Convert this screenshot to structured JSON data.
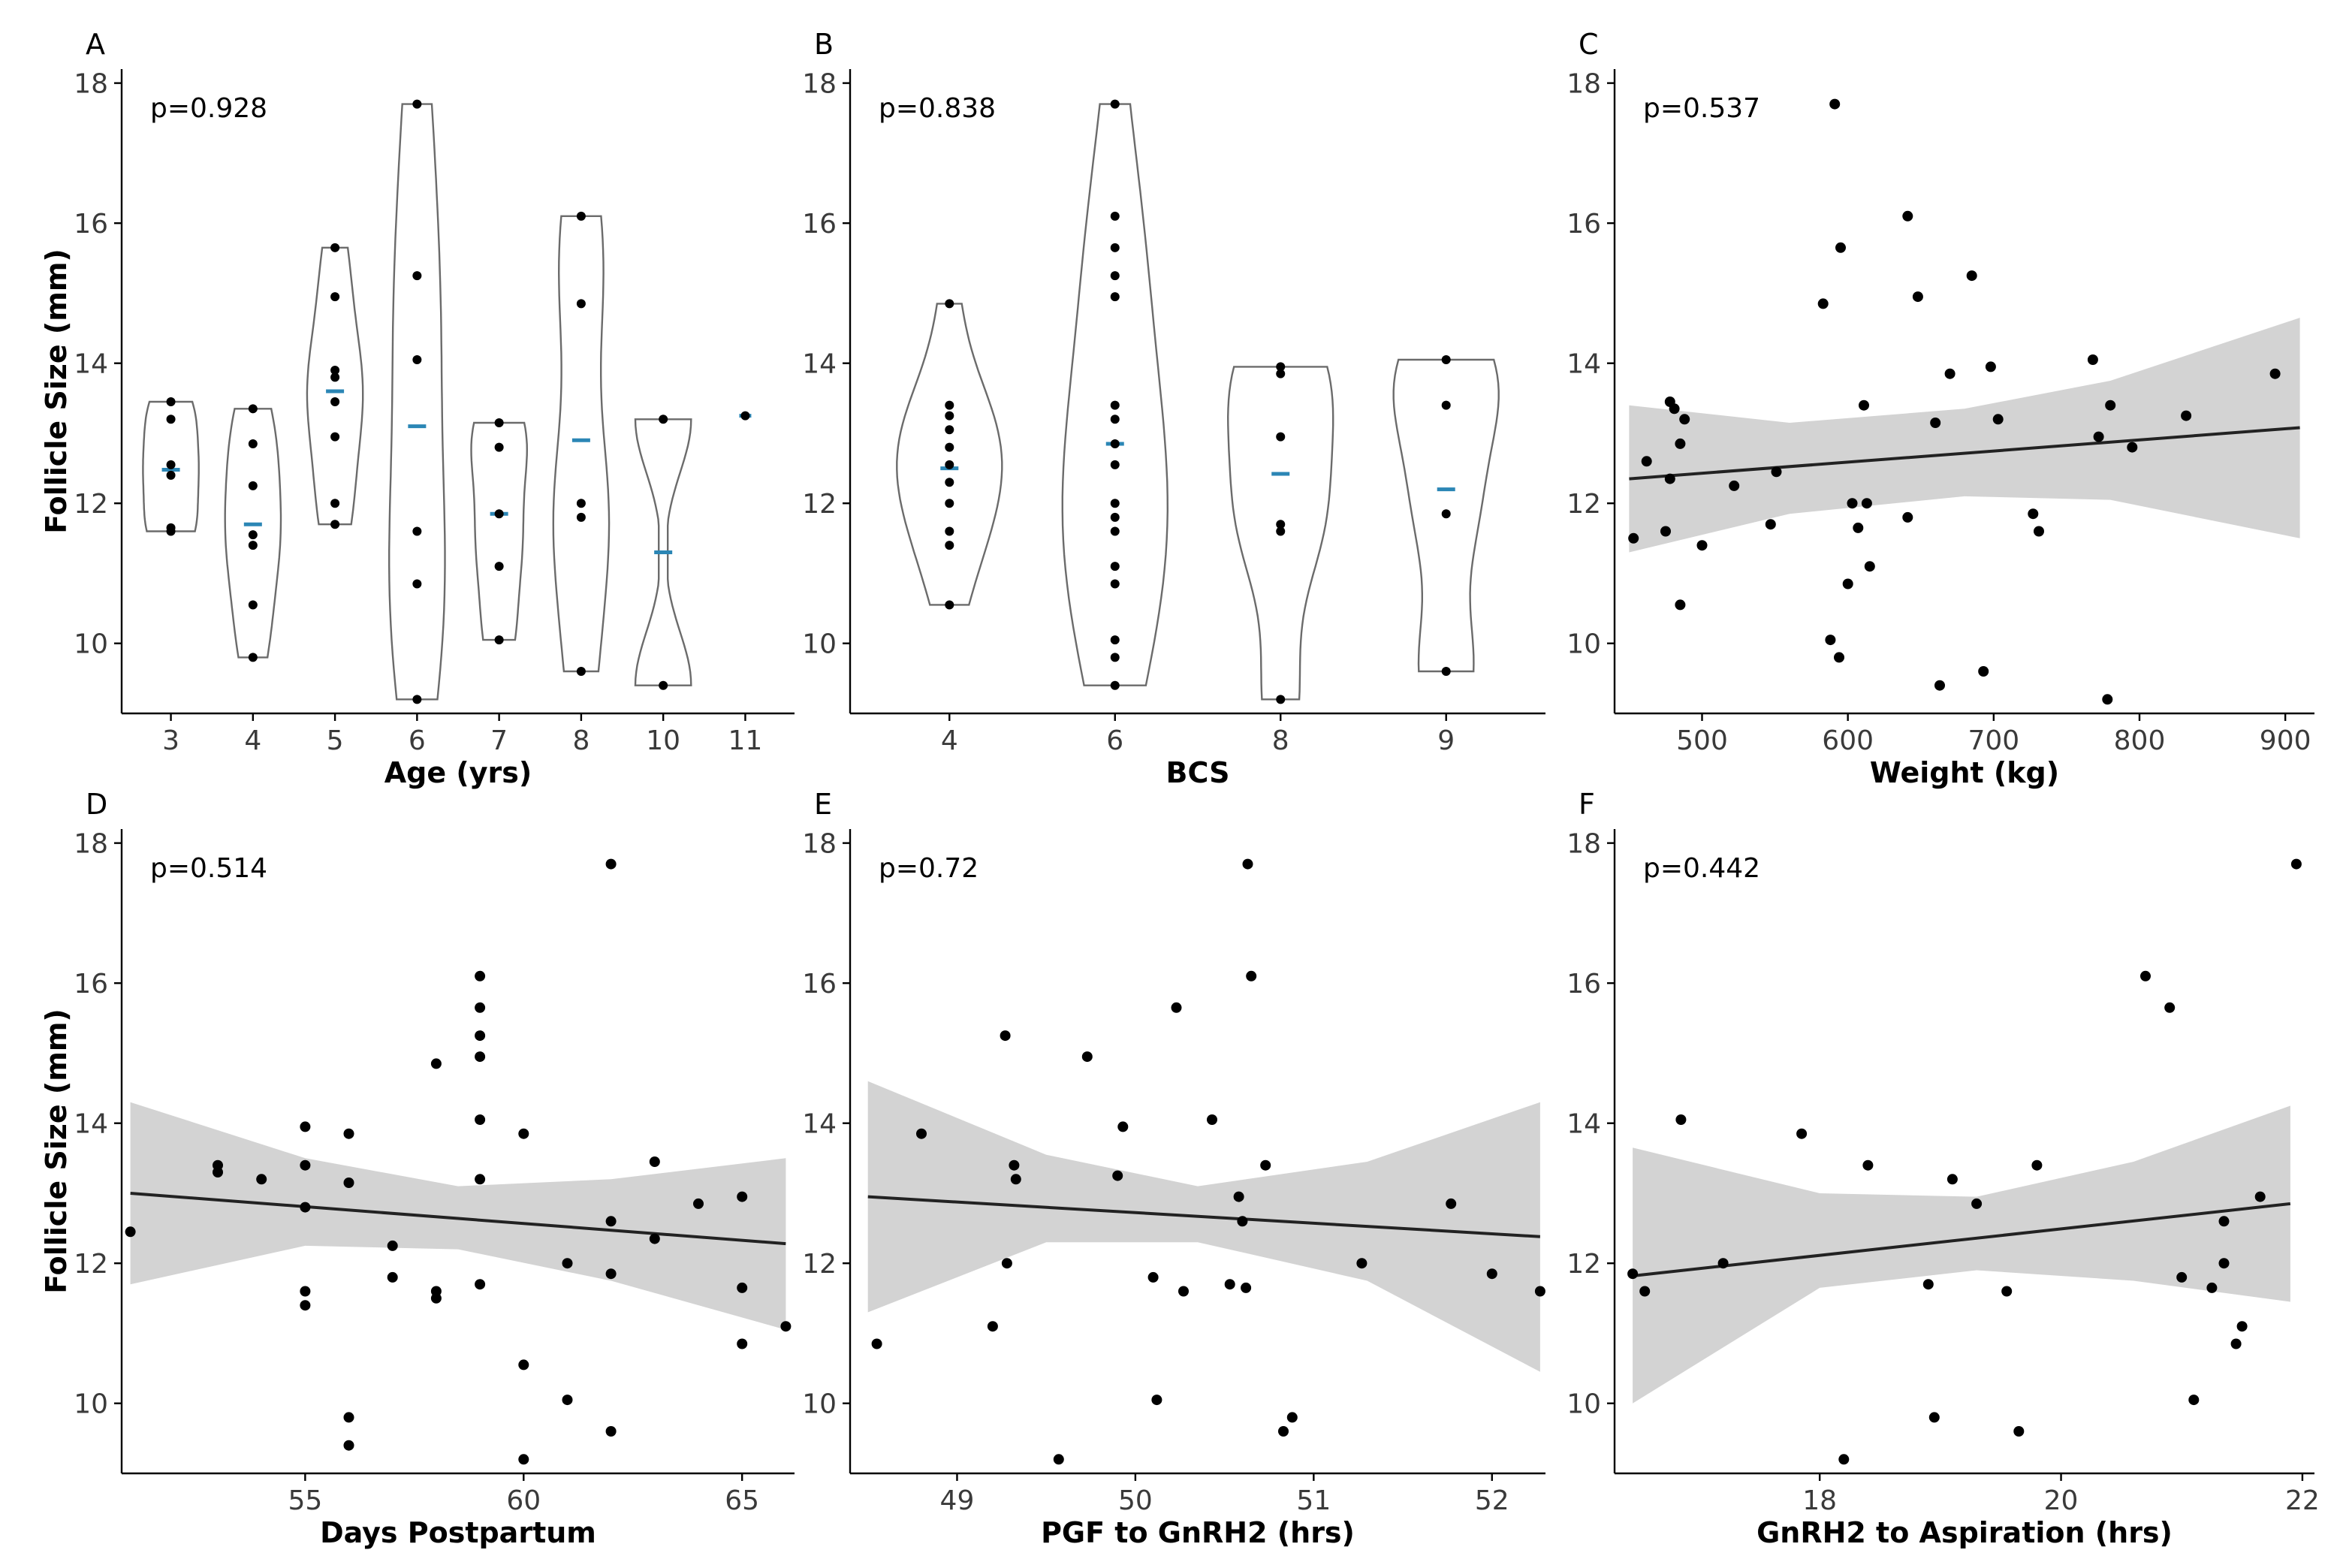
{
  "figure": {
    "y_axis_title": "Follicle Size (mm)"
  },
  "chart_data": [
    {
      "panel": "A",
      "type": "violin",
      "pvalue": "p=0.928",
      "xlabel": "Age (yrs)",
      "ylabel": "Follicle Size (mm)",
      "ylim": [
        9.0,
        18.2
      ],
      "yticks": [
        10,
        12,
        14,
        16,
        18
      ],
      "categories": [
        "3",
        "4",
        "5",
        "6",
        "7",
        "8",
        "10",
        "11"
      ],
      "groups": [
        {
          "x": "3",
          "points": [
            13.45,
            13.2,
            12.55,
            12.4,
            11.65,
            11.6
          ],
          "median": 12.48,
          "range": [
            11.6,
            13.45
          ]
        },
        {
          "x": "4",
          "points": [
            13.35,
            12.85,
            12.25,
            11.55,
            11.4,
            10.55,
            9.8
          ],
          "median": 11.7,
          "range": [
            9.8,
            13.35
          ]
        },
        {
          "x": "5",
          "points": [
            15.65,
            14.95,
            13.9,
            13.8,
            13.45,
            12.95,
            12.0,
            11.7
          ],
          "median": 13.6,
          "range": [
            11.7,
            15.65
          ]
        },
        {
          "x": "6",
          "points": [
            17.7,
            15.25,
            14.05,
            11.6,
            10.85,
            9.2
          ],
          "median": 13.1,
          "range": [
            9.2,
            17.7
          ]
        },
        {
          "x": "7",
          "points": [
            13.15,
            12.8,
            11.85,
            11.1,
            10.05
          ],
          "median": 11.85,
          "range": [
            10.05,
            13.15
          ]
        },
        {
          "x": "8",
          "points": [
            16.1,
            14.85,
            12.0,
            11.8,
            9.6
          ],
          "median": 12.9,
          "range": [
            9.6,
            16.1
          ]
        },
        {
          "x": "10",
          "points": [
            13.2,
            9.4
          ],
          "median": 11.3,
          "range": [
            9.4,
            13.2
          ]
        },
        {
          "x": "11",
          "points": [
            13.25
          ],
          "median": 13.25,
          "range": [
            13.25,
            13.25
          ]
        }
      ]
    },
    {
      "panel": "B",
      "type": "violin",
      "pvalue": "p=0.838",
      "xlabel": "BCS",
      "ylabel": "",
      "ylim": [
        9.0,
        18.2
      ],
      "yticks": [
        10,
        12,
        14,
        16,
        18
      ],
      "categories": [
        "4",
        "6",
        "8",
        "9"
      ],
      "groups": [
        {
          "x": "4",
          "points": [
            14.85,
            13.4,
            13.25,
            13.05,
            12.8,
            12.55,
            12.3,
            12.0,
            11.6,
            11.4,
            10.55
          ],
          "median": 12.5,
          "range": [
            10.55,
            14.85
          ]
        },
        {
          "x": "6",
          "points": [
            17.7,
            16.1,
            15.65,
            15.25,
            14.95,
            13.4,
            13.2,
            12.85,
            12.55,
            12.0,
            11.8,
            11.6,
            11.1,
            10.85,
            10.05,
            9.8,
            9.4
          ],
          "median": 12.85,
          "range": [
            9.4,
            17.7
          ]
        },
        {
          "x": "8",
          "points": [
            13.95,
            13.85,
            12.95,
            11.7,
            11.6,
            9.2
          ],
          "median": 12.42,
          "range": [
            9.2,
            13.95
          ]
        },
        {
          "x": "9",
          "points": [
            14.05,
            13.4,
            11.85,
            9.6
          ],
          "median": 12.2,
          "range": [
            9.6,
            14.05
          ]
        }
      ]
    },
    {
      "panel": "C",
      "type": "scatter",
      "pvalue": "p=0.537",
      "xlabel": "Weight (kg)",
      "ylabel": "",
      "xlim": [
        440,
        920
      ],
      "ylim": [
        9.0,
        18.2
      ],
      "xticks": [
        500,
        600,
        700,
        800,
        900
      ],
      "yticks": [
        10,
        12,
        14,
        16,
        18
      ],
      "points": [
        [
          453,
          11.5
        ],
        [
          462,
          12.6
        ],
        [
          475,
          11.6
        ],
        [
          478,
          13.45
        ],
        [
          478,
          12.35
        ],
        [
          481,
          13.35
        ],
        [
          485,
          12.85
        ],
        [
          485,
          10.55
        ],
        [
          488,
          13.2
        ],
        [
          500,
          11.4
        ],
        [
          522,
          12.25
        ],
        [
          547,
          11.7
        ],
        [
          551,
          12.45
        ],
        [
          583,
          14.85
        ],
        [
          588,
          10.05
        ],
        [
          591,
          17.7
        ],
        [
          594,
          9.8
        ],
        [
          595,
          15.65
        ],
        [
          600,
          10.85
        ],
        [
          603,
          12.0
        ],
        [
          607,
          11.65
        ],
        [
          611,
          13.4
        ],
        [
          613,
          12.0
        ],
        [
          615,
          11.1
        ],
        [
          641,
          16.1
        ],
        [
          641,
          11.8
        ],
        [
          648,
          14.95
        ],
        [
          660,
          13.15
        ],
        [
          663,
          9.4
        ],
        [
          670,
          13.85
        ],
        [
          685,
          15.25
        ],
        [
          693,
          9.6
        ],
        [
          698,
          13.95
        ],
        [
          703,
          13.2
        ],
        [
          727,
          11.85
        ],
        [
          731,
          11.6
        ],
        [
          768,
          14.05
        ],
        [
          772,
          12.95
        ],
        [
          778,
          9.2
        ],
        [
          780,
          13.4
        ],
        [
          795,
          12.8
        ],
        [
          832,
          13.25
        ],
        [
          893,
          13.85
        ]
      ],
      "fit": {
        "x": [
          450,
          910
        ],
        "y": [
          12.35,
          13.08
        ]
      },
      "band": {
        "x": [
          450,
          560,
          680,
          780,
          910
        ],
        "upper": [
          13.4,
          13.15,
          13.35,
          13.75,
          14.65
        ],
        "lower": [
          11.3,
          11.85,
          12.1,
          12.05,
          11.5
        ]
      }
    },
    {
      "panel": "D",
      "type": "scatter",
      "pvalue": "p=0.514",
      "xlabel": "Days Postpartum",
      "ylabel": "Follicle Size (mm)",
      "xlim": [
        50.8,
        66.2
      ],
      "ylim": [
        9.0,
        18.2
      ],
      "xticks": [
        55,
        60,
        65
      ],
      "yticks": [
        10,
        12,
        14,
        16,
        18
      ],
      "points": [
        [
          51,
          12.45
        ],
        [
          53,
          13.4
        ],
        [
          53,
          13.3
        ],
        [
          54,
          13.2
        ],
        [
          55,
          13.95
        ],
        [
          55,
          13.4
        ],
        [
          55,
          12.8
        ],
        [
          55,
          11.6
        ],
        [
          55,
          11.4
        ],
        [
          56,
          13.85
        ],
        [
          56,
          13.15
        ],
        [
          56,
          9.8
        ],
        [
          56,
          9.4
        ],
        [
          57,
          12.25
        ],
        [
          57,
          11.8
        ],
        [
          58,
          14.85
        ],
        [
          58,
          11.6
        ],
        [
          58,
          11.5
        ],
        [
          59,
          16.1
        ],
        [
          59,
          15.65
        ],
        [
          59,
          15.25
        ],
        [
          59,
          14.95
        ],
        [
          59,
          14.05
        ],
        [
          59,
          13.2
        ],
        [
          59,
          11.7
        ],
        [
          60,
          13.85
        ],
        [
          60,
          10.55
        ],
        [
          60,
          9.2
        ],
        [
          61,
          12.0
        ],
        [
          61,
          10.05
        ],
        [
          62,
          17.7
        ],
        [
          62,
          12.6
        ],
        [
          62,
          11.85
        ],
        [
          62,
          9.6
        ],
        [
          63,
          13.45
        ],
        [
          63,
          12.35
        ],
        [
          64,
          12.85
        ],
        [
          65,
          12.95
        ],
        [
          65,
          11.65
        ],
        [
          65,
          10.85
        ],
        [
          66,
          11.1
        ]
      ],
      "fit": {
        "x": [
          51,
          66
        ],
        "y": [
          13.0,
          12.28
        ]
      },
      "band": {
        "x": [
          51,
          55,
          58.5,
          62,
          66
        ],
        "upper": [
          14.3,
          13.5,
          13.1,
          13.2,
          13.5
        ],
        "lower": [
          11.7,
          12.25,
          12.2,
          11.75,
          11.05
        ]
      }
    },
    {
      "panel": "E",
      "type": "scatter",
      "pvalue": "p=0.72",
      "xlabel": "PGF to GnRH2 (hrs)",
      "ylabel": "",
      "xlim": [
        48.4,
        52.3
      ],
      "ylim": [
        9.0,
        18.2
      ],
      "xticks": [
        49,
        50,
        51,
        52
      ],
      "yticks": [
        10,
        12,
        14,
        16,
        18
      ],
      "points": [
        [
          48.55,
          10.85
        ],
        [
          48.8,
          13.85
        ],
        [
          49.2,
          11.1
        ],
        [
          49.27,
          15.25
        ],
        [
          49.28,
          12.0
        ],
        [
          49.32,
          13.4
        ],
        [
          49.33,
          13.2
        ],
        [
          49.57,
          9.2
        ],
        [
          49.73,
          14.95
        ],
        [
          49.9,
          13.25
        ],
        [
          49.93,
          13.95
        ],
        [
          50.1,
          11.8
        ],
        [
          50.12,
          10.05
        ],
        [
          50.23,
          15.65
        ],
        [
          50.27,
          11.6
        ],
        [
          50.43,
          14.05
        ],
        [
          50.53,
          11.7
        ],
        [
          50.58,
          12.95
        ],
        [
          50.6,
          12.6
        ],
        [
          50.62,
          11.65
        ],
        [
          50.63,
          17.7
        ],
        [
          50.65,
          16.1
        ],
        [
          50.73,
          13.4
        ],
        [
          50.83,
          9.6
        ],
        [
          50.88,
          9.8
        ],
        [
          51.27,
          12.0
        ],
        [
          51.77,
          12.85
        ],
        [
          52.0,
          11.85
        ],
        [
          52.27,
          11.6
        ]
      ],
      "fit": {
        "x": [
          48.5,
          52.27
        ],
        "y": [
          12.95,
          12.38
        ]
      },
      "band": {
        "x": [
          48.5,
          49.5,
          50.35,
          51.3,
          52.27
        ],
        "upper": [
          14.6,
          13.55,
          13.1,
          13.45,
          14.3
        ],
        "lower": [
          11.3,
          12.3,
          12.3,
          11.75,
          10.45
        ]
      }
    },
    {
      "panel": "F",
      "type": "scatter",
      "pvalue": "p=0.442",
      "xlabel": "GnRH2 to Aspiration (hrs)",
      "ylabel": "",
      "xlim": [
        16.3,
        22.1
      ],
      "ylim": [
        9.0,
        18.2
      ],
      "xticks": [
        18,
        20,
        22
      ],
      "yticks": [
        10,
        12,
        14,
        16,
        18
      ],
      "points": [
        [
          16.45,
          11.85
        ],
        [
          16.55,
          11.6
        ],
        [
          16.85,
          14.05
        ],
        [
          17.2,
          12.0
        ],
        [
          17.85,
          13.85
        ],
        [
          18.2,
          9.2
        ],
        [
          18.4,
          13.4
        ],
        [
          18.9,
          11.7
        ],
        [
          18.95,
          9.8
        ],
        [
          19.1,
          13.2
        ],
        [
          19.3,
          12.85
        ],
        [
          19.55,
          11.6
        ],
        [
          19.65,
          9.6
        ],
        [
          19.8,
          13.4
        ],
        [
          20.7,
          16.1
        ],
        [
          20.9,
          15.65
        ],
        [
          21.0,
          11.8
        ],
        [
          21.1,
          10.05
        ],
        [
          21.25,
          11.65
        ],
        [
          21.35,
          12.6
        ],
        [
          21.35,
          12.0
        ],
        [
          21.45,
          10.85
        ],
        [
          21.5,
          11.1
        ],
        [
          21.65,
          12.95
        ],
        [
          21.95,
          17.7
        ]
      ],
      "fit": {
        "x": [
          16.45,
          21.9
        ],
        "y": [
          11.82,
          12.85
        ]
      },
      "band": {
        "x": [
          16.45,
          18.0,
          19.3,
          20.6,
          21.9
        ],
        "upper": [
          13.65,
          13.0,
          12.95,
          13.45,
          14.25
        ],
        "lower": [
          10.0,
          11.65,
          11.9,
          11.75,
          11.45
        ]
      }
    }
  ]
}
